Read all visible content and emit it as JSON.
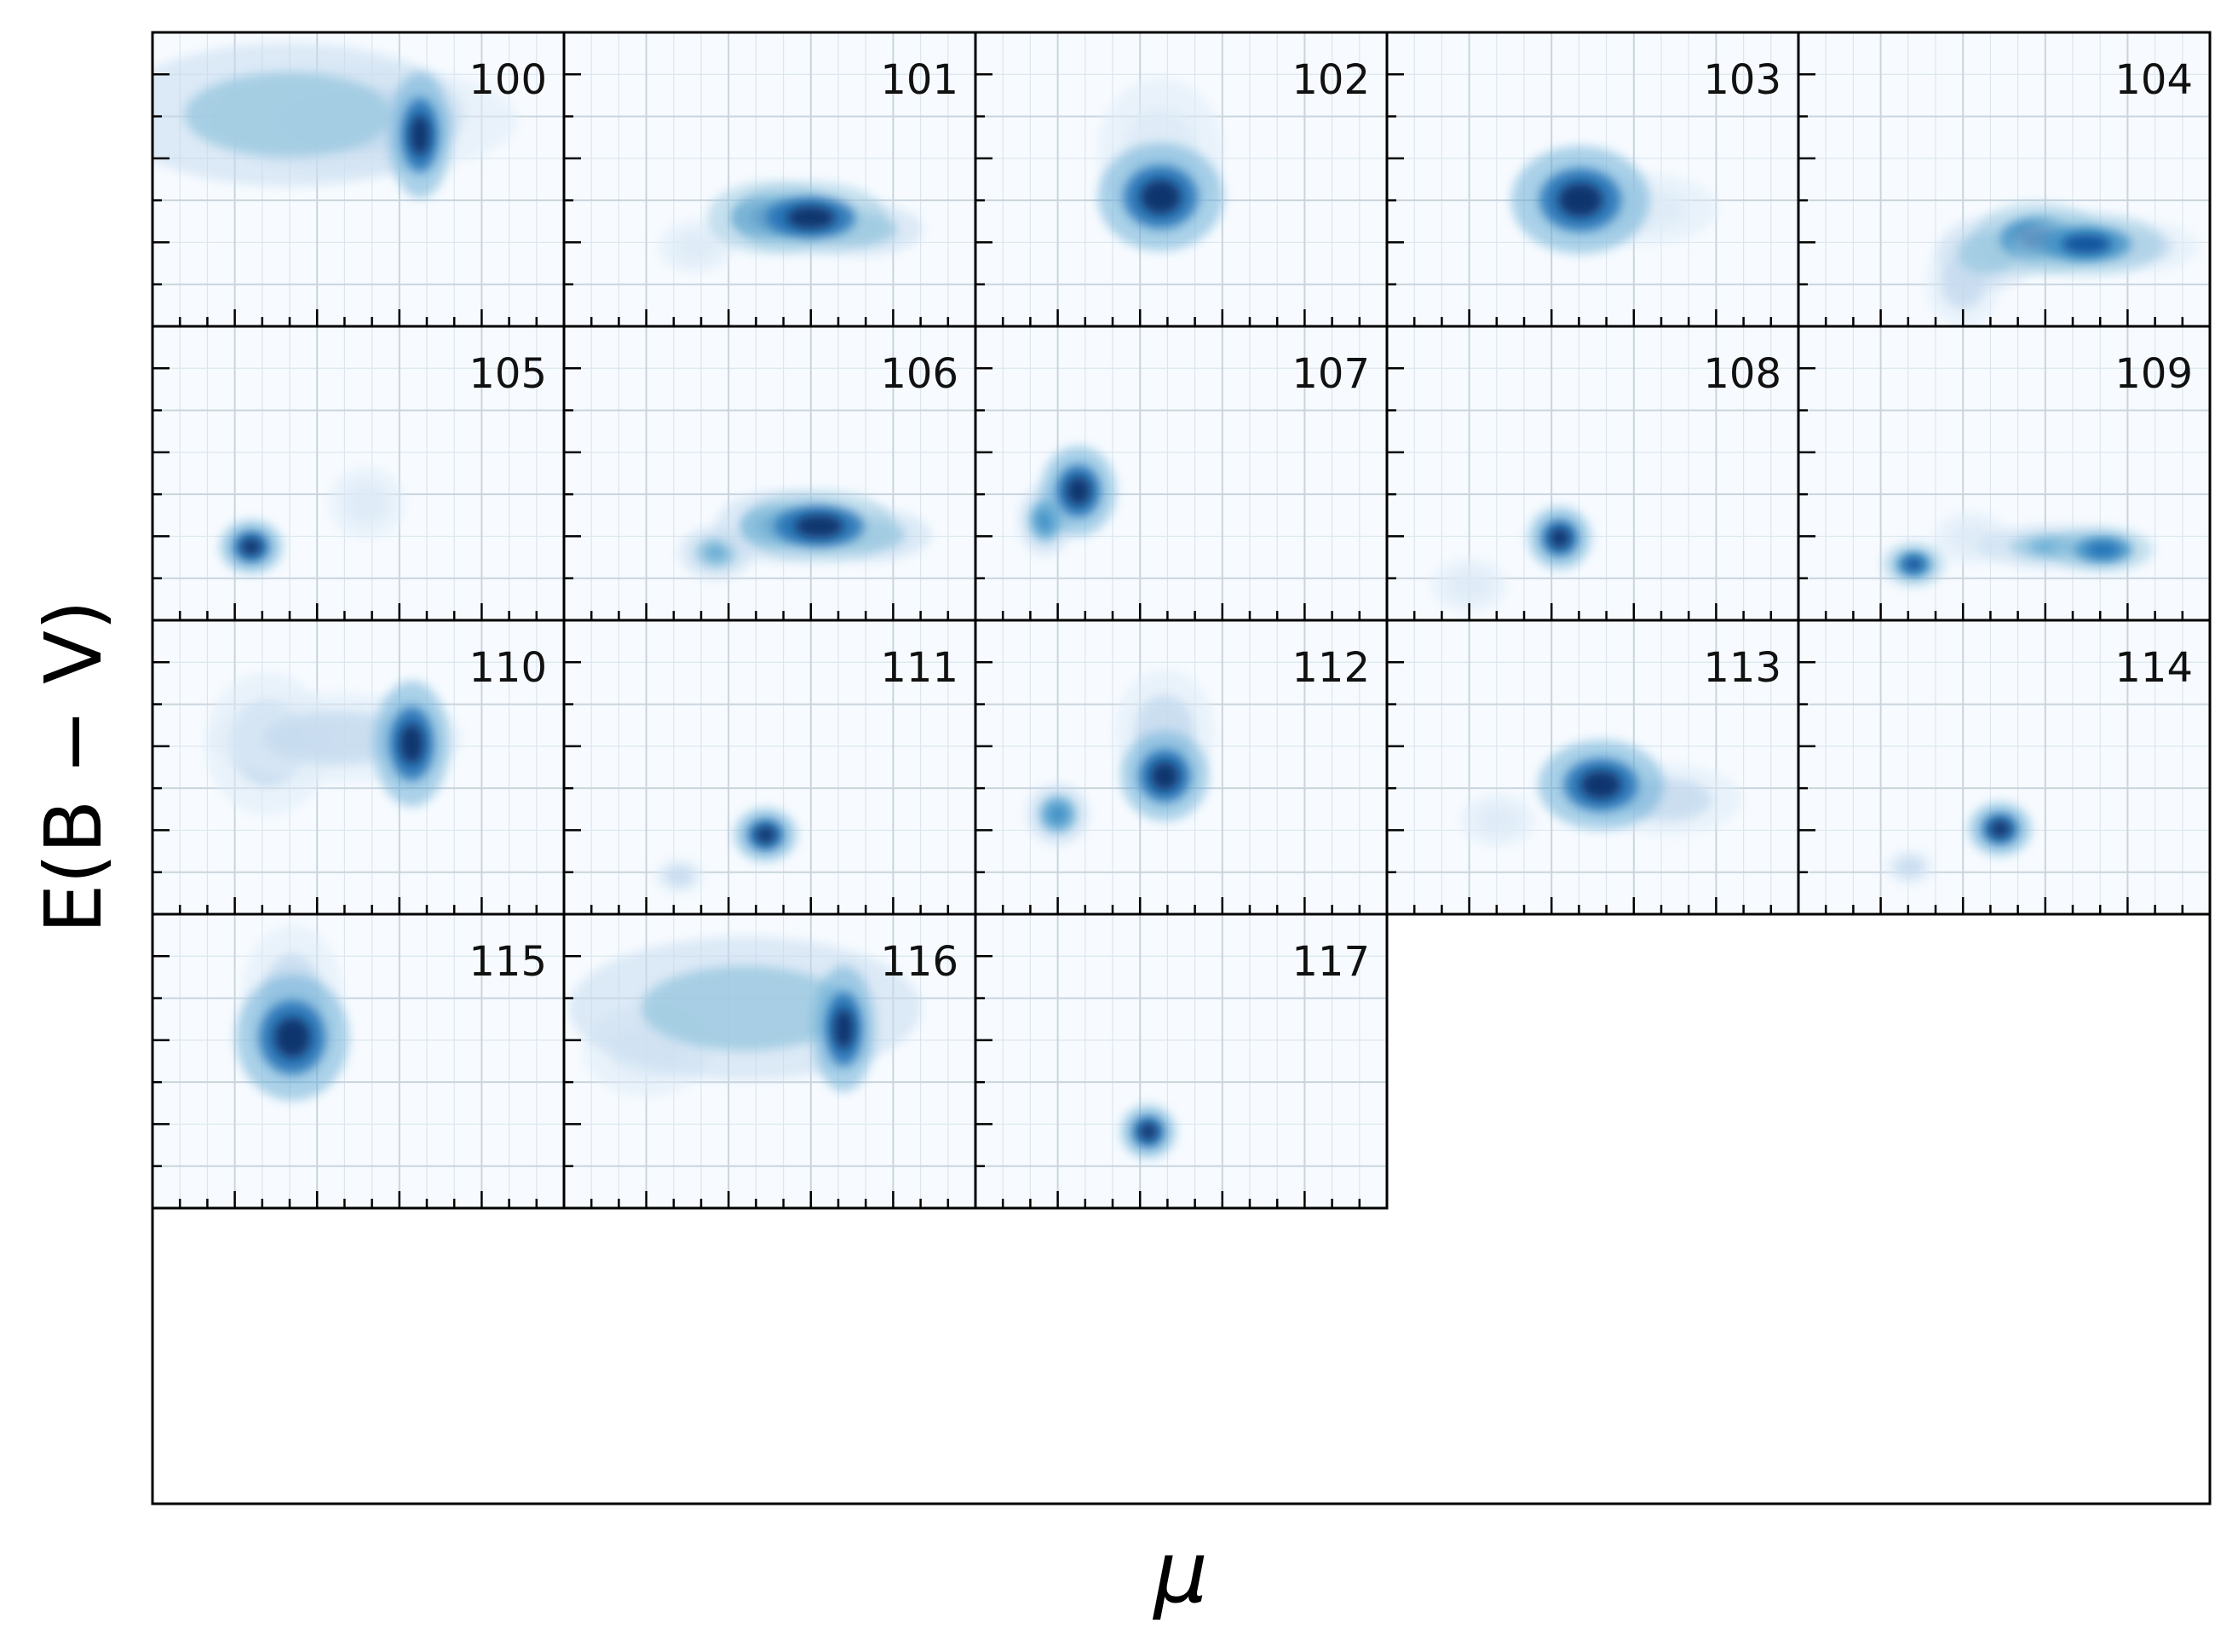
{
  "chart_data": {
    "type": "heatmap",
    "title": "",
    "xlabel": "μ",
    "ylabel": "E(B − V)",
    "grid": true,
    "colormap": [
      "#f7fbff",
      "#deebf7",
      "#c6dbef",
      "#9ecae1",
      "#6baed6",
      "#4292c6",
      "#2171b5",
      "#08519c",
      "#08306b"
    ],
    "panel_grid": {
      "rows": 4,
      "cols": 5
    },
    "x_range": [
      0,
      1
    ],
    "y_range": [
      0,
      1
    ],
    "panels": [
      {
        "label": "100",
        "blobs": [
          {
            "x": 0.33,
            "y": 0.72,
            "sx": 0.14,
            "sy": 0.08,
            "a": 0.45
          },
          {
            "x": 0.52,
            "y": 0.7,
            "sx": 0.12,
            "sy": 0.06,
            "a": 0.4
          },
          {
            "x": 0.65,
            "y": 0.65,
            "sx": 0.025,
            "sy": 0.07,
            "a": 1.0
          }
        ]
      },
      {
        "label": "101",
        "blobs": [
          {
            "x": 0.32,
            "y": 0.27,
            "sx": 0.03,
            "sy": 0.03,
            "a": 0.15
          },
          {
            "x": 0.5,
            "y": 0.37,
            "sx": 0.05,
            "sy": 0.04,
            "a": 0.75
          },
          {
            "x": 0.6,
            "y": 0.37,
            "sx": 0.06,
            "sy": 0.04,
            "a": 0.95
          },
          {
            "x": 0.72,
            "y": 0.33,
            "sx": 0.05,
            "sy": 0.03,
            "a": 0.45
          }
        ]
      },
      {
        "label": "102",
        "blobs": [
          {
            "x": 0.45,
            "y": 0.44,
            "sx": 0.05,
            "sy": 0.06,
            "a": 1.0
          },
          {
            "x": 0.45,
            "y": 0.6,
            "sx": 0.05,
            "sy": 0.08,
            "a": 0.2
          }
        ]
      },
      {
        "label": "103",
        "blobs": [
          {
            "x": 0.47,
            "y": 0.43,
            "sx": 0.055,
            "sy": 0.06,
            "a": 1.0
          },
          {
            "x": 0.62,
            "y": 0.4,
            "sx": 0.06,
            "sy": 0.04,
            "a": 0.2
          }
        ]
      },
      {
        "label": "104",
        "blobs": [
          {
            "x": 0.4,
            "y": 0.15,
            "sx": 0.03,
            "sy": 0.05,
            "a": 0.3
          },
          {
            "x": 0.46,
            "y": 0.25,
            "sx": 0.04,
            "sy": 0.04,
            "a": 0.5
          },
          {
            "x": 0.58,
            "y": 0.3,
            "sx": 0.05,
            "sy": 0.04,
            "a": 0.85
          },
          {
            "x": 0.7,
            "y": 0.28,
            "sx": 0.06,
            "sy": 0.035,
            "a": 0.9
          },
          {
            "x": 0.82,
            "y": 0.27,
            "sx": 0.05,
            "sy": 0.03,
            "a": 0.35
          }
        ]
      },
      {
        "label": "105",
        "blobs": [
          {
            "x": 0.24,
            "y": 0.25,
            "sx": 0.025,
            "sy": 0.03,
            "a": 1.0
          },
          {
            "x": 0.52,
            "y": 0.4,
            "sx": 0.03,
            "sy": 0.04,
            "a": 0.2
          }
        ]
      },
      {
        "label": "106",
        "blobs": [
          {
            "x": 0.37,
            "y": 0.23,
            "sx": 0.03,
            "sy": 0.03,
            "a": 0.55
          },
          {
            "x": 0.52,
            "y": 0.32,
            "sx": 0.05,
            "sy": 0.04,
            "a": 0.6
          },
          {
            "x": 0.62,
            "y": 0.32,
            "sx": 0.06,
            "sy": 0.04,
            "a": 0.95
          },
          {
            "x": 0.74,
            "y": 0.29,
            "sx": 0.05,
            "sy": 0.03,
            "a": 0.5
          }
        ]
      },
      {
        "label": "107",
        "blobs": [
          {
            "x": 0.17,
            "y": 0.34,
            "sx": 0.022,
            "sy": 0.04,
            "a": 0.6
          },
          {
            "x": 0.25,
            "y": 0.44,
            "sx": 0.03,
            "sy": 0.05,
            "a": 1.0
          }
        ]
      },
      {
        "label": "108",
        "blobs": [
          {
            "x": 0.42,
            "y": 0.28,
            "sx": 0.025,
            "sy": 0.035,
            "a": 1.0
          },
          {
            "x": 0.2,
            "y": 0.12,
            "sx": 0.03,
            "sy": 0.03,
            "a": 0.08
          }
        ]
      },
      {
        "label": "109",
        "blobs": [
          {
            "x": 0.28,
            "y": 0.19,
            "sx": 0.025,
            "sy": 0.025,
            "a": 0.9
          },
          {
            "x": 0.42,
            "y": 0.28,
            "sx": 0.03,
            "sy": 0.03,
            "a": 0.15
          },
          {
            "x": 0.62,
            "y": 0.25,
            "sx": 0.06,
            "sy": 0.025,
            "a": 0.55
          },
          {
            "x": 0.74,
            "y": 0.24,
            "sx": 0.04,
            "sy": 0.025,
            "a": 0.8
          }
        ]
      },
      {
        "label": "110",
        "blobs": [
          {
            "x": 0.28,
            "y": 0.58,
            "sx": 0.05,
            "sy": 0.08,
            "a": 0.3
          },
          {
            "x": 0.45,
            "y": 0.6,
            "sx": 0.1,
            "sy": 0.05,
            "a": 0.4
          },
          {
            "x": 0.63,
            "y": 0.58,
            "sx": 0.03,
            "sy": 0.07,
            "a": 1.0
          }
        ]
      },
      {
        "label": "111",
        "blobs": [
          {
            "x": 0.28,
            "y": 0.13,
            "sx": 0.02,
            "sy": 0.02,
            "a": 0.4
          },
          {
            "x": 0.49,
            "y": 0.27,
            "sx": 0.025,
            "sy": 0.03,
            "a": 1.0
          }
        ]
      },
      {
        "label": "112",
        "blobs": [
          {
            "x": 0.2,
            "y": 0.34,
            "sx": 0.025,
            "sy": 0.035,
            "a": 0.65
          },
          {
            "x": 0.46,
            "y": 0.47,
            "sx": 0.035,
            "sy": 0.05,
            "a": 1.0
          },
          {
            "x": 0.46,
            "y": 0.62,
            "sx": 0.04,
            "sy": 0.07,
            "a": 0.25
          }
        ]
      },
      {
        "label": "113",
        "blobs": [
          {
            "x": 0.27,
            "y": 0.32,
            "sx": 0.03,
            "sy": 0.03,
            "a": 0.2
          },
          {
            "x": 0.52,
            "y": 0.44,
            "sx": 0.05,
            "sy": 0.05,
            "a": 1.0
          },
          {
            "x": 0.68,
            "y": 0.39,
            "sx": 0.06,
            "sy": 0.04,
            "a": 0.3
          }
        ]
      },
      {
        "label": "114",
        "blobs": [
          {
            "x": 0.27,
            "y": 0.16,
            "sx": 0.02,
            "sy": 0.02,
            "a": 0.35
          },
          {
            "x": 0.49,
            "y": 0.29,
            "sx": 0.025,
            "sy": 0.03,
            "a": 1.0
          }
        ]
      },
      {
        "label": "115",
        "blobs": [
          {
            "x": 0.34,
            "y": 0.58,
            "sx": 0.045,
            "sy": 0.07,
            "a": 1.0
          },
          {
            "x": 0.34,
            "y": 0.72,
            "sx": 0.04,
            "sy": 0.08,
            "a": 0.3
          }
        ]
      },
      {
        "label": "116",
        "blobs": [
          {
            "x": 0.2,
            "y": 0.53,
            "sx": 0.05,
            "sy": 0.05,
            "a": 0.15
          },
          {
            "x": 0.44,
            "y": 0.68,
            "sx": 0.14,
            "sy": 0.08,
            "a": 0.45
          },
          {
            "x": 0.68,
            "y": 0.61,
            "sx": 0.025,
            "sy": 0.07,
            "a": 1.0
          }
        ]
      },
      {
        "label": "117",
        "blobs": [
          {
            "x": 0.42,
            "y": 0.26,
            "sx": 0.022,
            "sy": 0.03,
            "a": 1.0
          }
        ]
      }
    ]
  }
}
